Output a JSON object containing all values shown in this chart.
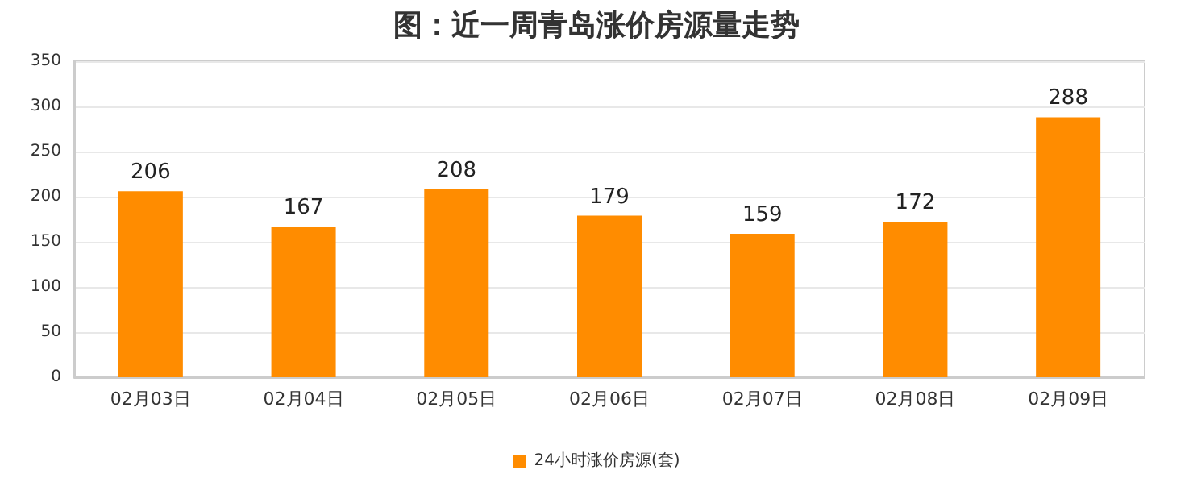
{
  "chart_data": {
    "type": "bar",
    "title": "图：近一周青岛涨价房源量走势",
    "categories": [
      "02月03日",
      "02月04日",
      "02月05日",
      "02月06日",
      "02月07日",
      "02月08日",
      "02月09日"
    ],
    "series": [
      {
        "name": "24小时涨价房源(套)",
        "color": "#ff8c00",
        "values": [
          206,
          167,
          208,
          179,
          159,
          172,
          288
        ]
      }
    ],
    "ylim": [
      0,
      350
    ],
    "yticks": [
      0,
      50,
      100,
      150,
      200,
      250,
      300,
      350
    ],
    "grid": "y",
    "legend": "bottom",
    "data_labels": true
  }
}
